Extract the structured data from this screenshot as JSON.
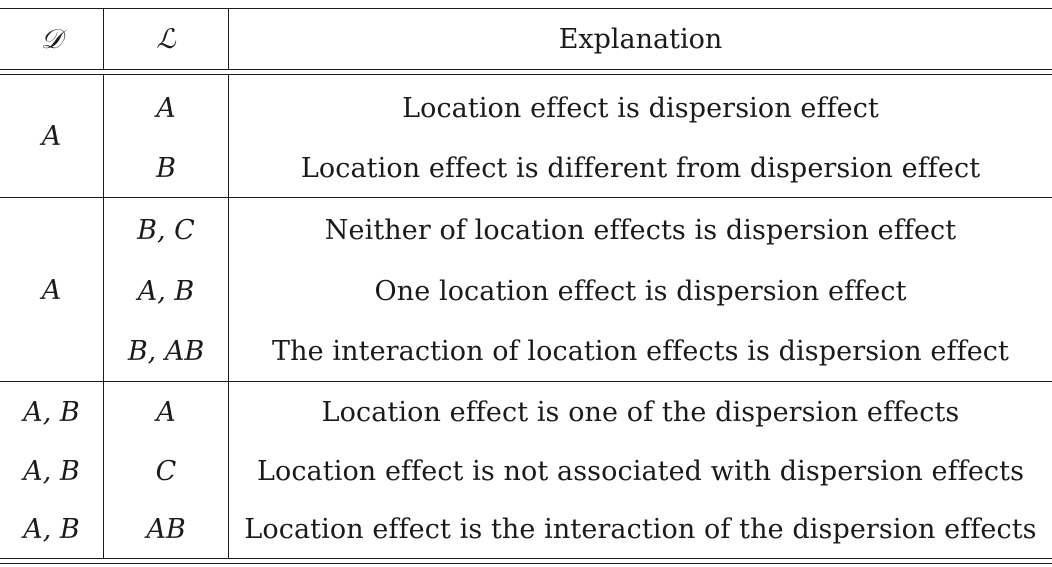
{
  "header": {
    "col_d": "𝒟",
    "col_l": "ℒ",
    "col_expl": "Explanation"
  },
  "groups": [
    {
      "d": "A",
      "rows": [
        {
          "l": "A",
          "expl": "Location effect is dispersion effect"
        },
        {
          "l": "B",
          "expl": "Location effect is different from dispersion effect"
        }
      ]
    },
    {
      "d": "A",
      "rows": [
        {
          "l": "B, C",
          "expl": "Neither of location effects is dispersion effect"
        },
        {
          "l": "A, B",
          "expl": "One location effect is dispersion effect"
        },
        {
          "l": "B, AB",
          "expl": "The interaction of location effects is dispersion effect"
        }
      ]
    },
    {
      "d": "",
      "rows": [
        {
          "d": "A, B",
          "l": "A",
          "expl": "Location effect is one of the dispersion effects"
        },
        {
          "d": "A, B",
          "l": "C",
          "expl": "Location effect is not associated with dispersion effects"
        },
        {
          "d": "A, B",
          "l": "AB",
          "expl": "Location effect is the interaction of the dispersion effects"
        }
      ]
    }
  ]
}
